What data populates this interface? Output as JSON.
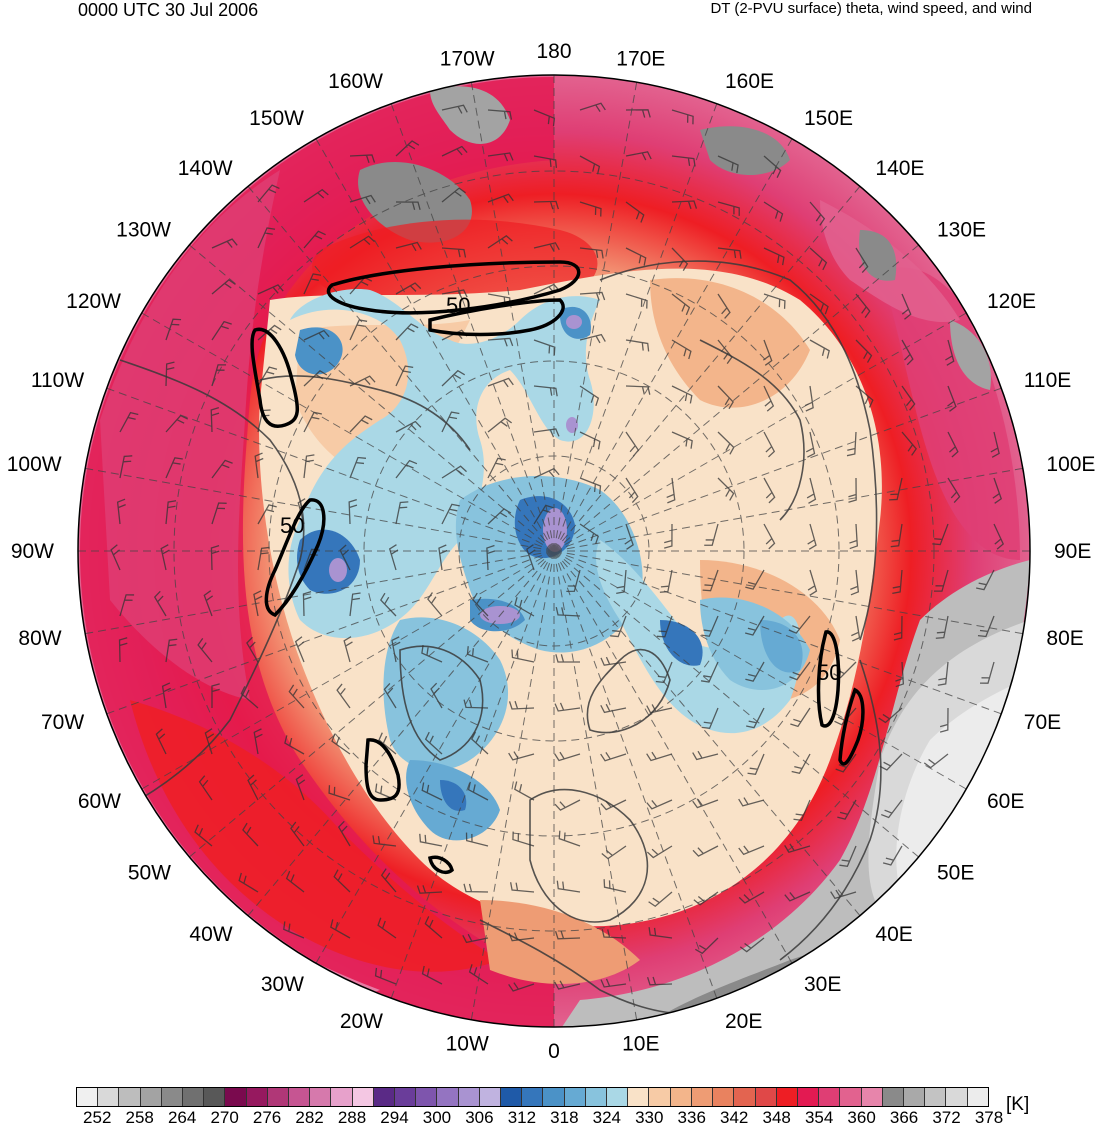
{
  "header": {
    "valid_time": "0000 UTC 30 Jul 2006",
    "product": "DT (2-PVU surface) theta, wind speed, and wind"
  },
  "map": {
    "projection": "north-polar-stereographic",
    "meridian_labels": [
      "180",
      "170E",
      "160E",
      "150E",
      "140E",
      "130E",
      "120E",
      "110E",
      "100E",
      "90E",
      "80E",
      "70E",
      "60E",
      "50E",
      "40E",
      "30E",
      "20E",
      "10E",
      "0",
      "10W",
      "20W",
      "30W",
      "40W",
      "50W",
      "60W",
      "70W",
      "80W",
      "90W",
      "100W",
      "110W",
      "120W",
      "130W",
      "140W",
      "150W",
      "160W",
      "170W"
    ],
    "wind_speed_contour_labels": [
      "50",
      "50",
      "50"
    ]
  },
  "colorbar": {
    "unit": "[K]",
    "tick_labels": [
      "252",
      "258",
      "264",
      "270",
      "276",
      "282",
      "288",
      "294",
      "300",
      "306",
      "312",
      "318",
      "324",
      "330",
      "336",
      "342",
      "348",
      "354",
      "360",
      "366",
      "372",
      "378"
    ],
    "colors": [
      "#f0f0f0",
      "#d9d9d9",
      "#bdbdbd",
      "#a3a3a3",
      "#8a8a8a",
      "#707070",
      "#585858",
      "#7a0a4e",
      "#96195f",
      "#b03777",
      "#c65592",
      "#d679ac",
      "#e7a1cb",
      "#f4c7e3",
      "#5a2a86",
      "#6a3d9a",
      "#7e55ad",
      "#9474c1",
      "#a993d1",
      "#c0b3e0",
      "#1f5aa8",
      "#3576bb",
      "#4b92c7",
      "#66aad3",
      "#88c3dd",
      "#aad8e6",
      "#f9e2c8",
      "#f7cba6",
      "#f3b58b",
      "#ee9c74",
      "#e9825f",
      "#e36450",
      "#e04848",
      "#ee1e24",
      "#e31a52",
      "#df3e74",
      "#e2628f",
      "#e785ab",
      "#8a8a8a",
      "#a9a9a9",
      "#c3c3c3",
      "#d9d9d9",
      "#ececec"
    ]
  }
}
